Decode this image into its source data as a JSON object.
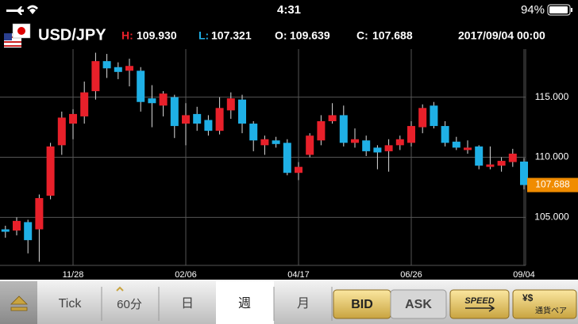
{
  "status_bar": {
    "time": "4:31",
    "battery": "94%"
  },
  "header": {
    "symbol": "USD/JPY",
    "high_label": "H:",
    "high": "109.930",
    "low_label": "L:",
    "low": "107.321",
    "open_label": "O:",
    "open": "109.639",
    "close_label": "C:",
    "close": "107.688",
    "datetime": "2017/09/04 00:00"
  },
  "chart_data": {
    "type": "candlestick",
    "categories": [
      null,
      null,
      null,
      null,
      null,
      null,
      "11/28",
      null,
      null,
      null,
      null,
      null,
      null,
      null,
      null,
      null,
      "02/06",
      null,
      null,
      null,
      null,
      null,
      null,
      null,
      null,
      null,
      "04/17",
      null,
      null,
      null,
      null,
      null,
      null,
      null,
      null,
      null,
      "06/26",
      null,
      null,
      null,
      null,
      null,
      null,
      null,
      null,
      null,
      "09/04"
    ],
    "open": [
      104.0,
      103.9,
      104.6,
      104.0,
      106.8,
      111.0,
      112.8,
      113.4,
      115.5,
      118.0,
      117.5,
      117.2,
      117.2,
      114.9,
      114.3,
      115.0,
      112.8,
      113.6,
      113.1,
      112.2,
      113.9,
      114.8,
      112.8,
      111.0,
      111.4,
      111.2,
      108.7,
      110.2,
      111.4,
      113.0,
      113.5,
      111.2,
      111.4,
      110.8,
      110.5,
      111.0,
      111.2,
      112.5,
      114.3,
      112.6,
      111.3,
      110.6,
      110.9,
      109.2,
      109.3,
      109.6,
      109.639
    ],
    "high": [
      104.3,
      105.0,
      104.8,
      106.9,
      111.2,
      113.8,
      114.0,
      116.3,
      118.7,
      118.6,
      117.9,
      118.2,
      117.5,
      116.0,
      115.5,
      115.2,
      114.5,
      114.2,
      113.5,
      115.0,
      115.4,
      115.2,
      113.0,
      111.8,
      111.7,
      111.5,
      109.6,
      112.0,
      113.5,
      114.5,
      114.3,
      112.4,
      111.8,
      111.0,
      111.5,
      111.8,
      113.0,
      114.4,
      114.6,
      113.0,
      111.7,
      111.4,
      111.0,
      110.9,
      110.0,
      110.7,
      109.93
    ],
    "low": [
      103.3,
      103.5,
      102.0,
      101.3,
      106.5,
      110.2,
      111.5,
      112.8,
      114.8,
      116.6,
      116.5,
      115.9,
      113.8,
      112.5,
      113.4,
      111.6,
      111.0,
      112.2,
      111.8,
      111.9,
      113.2,
      112.0,
      110.5,
      110.2,
      110.8,
      108.5,
      108.1,
      110.0,
      111.0,
      112.8,
      110.9,
      110.8,
      110.1,
      109.0,
      108.8,
      110.6,
      110.9,
      112.0,
      112.4,
      110.9,
      110.6,
      110.3,
      109.0,
      109.0,
      108.8,
      109.2,
      107.321
    ],
    "close": [
      103.8,
      104.7,
      103.1,
      106.6,
      110.9,
      113.3,
      113.6,
      115.4,
      118.0,
      117.4,
      117.1,
      117.6,
      114.6,
      114.5,
      115.3,
      112.6,
      113.5,
      112.8,
      112.2,
      114.1,
      114.9,
      112.8,
      111.4,
      111.5,
      111.1,
      108.7,
      109.2,
      111.8,
      113.0,
      113.5,
      111.2,
      111.5,
      110.5,
      110.4,
      111.0,
      111.5,
      112.6,
      114.1,
      112.6,
      111.2,
      110.8,
      110.8,
      109.3,
      109.4,
      109.7,
      110.3,
      107.688
    ],
    "up_color": "#e8202a",
    "down_color": "#1fb0e6",
    "ylim": [
      101,
      119
    ],
    "yticks": [
      {
        "value": 105,
        "label": "105.000"
      },
      {
        "value": 110,
        "label": "110.000"
      },
      {
        "value": 115,
        "label": "115.000"
      }
    ],
    "last_price": 107.688,
    "last_price_color": "#f08c00",
    "grid": true
  },
  "toolbar": {
    "buttons": [
      "Tick",
      "60分",
      "日",
      "週",
      "月",
      "BID",
      "ASK",
      "SPEED",
      "通貨ペア"
    ]
  }
}
